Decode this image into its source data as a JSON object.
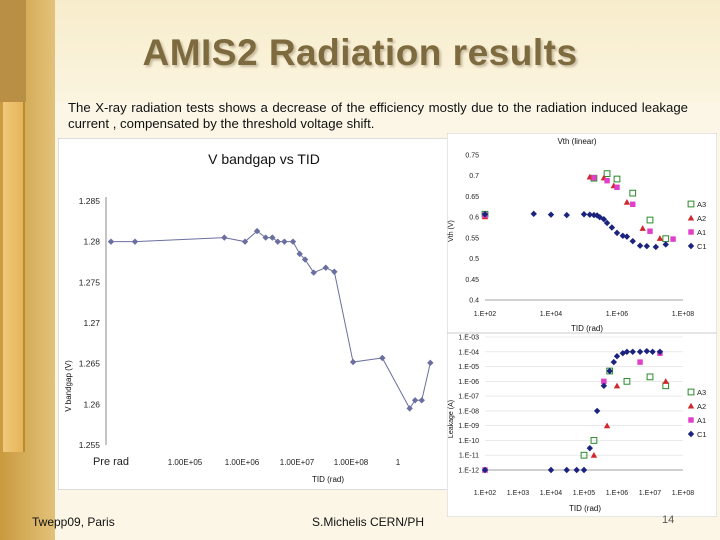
{
  "slide": {
    "title": "AMIS2 Radiation results",
    "caption": "The X-ray radiation tests shows a decrease of the efficiency mostly due to the radiation induced leakage current , compensated by the threshold voltage shift.",
    "footer_left": "Twepp09, Paris",
    "footer_center": "S.Michelis CERN/PH",
    "page_number": "14",
    "colors": {
      "background": "#fbf6e6",
      "title": "#7d6a3e",
      "accent_strip": "#d4a74e"
    }
  },
  "chart_data": [
    {
      "type": "line",
      "title": "V bandgap vs TID",
      "xlabel": "TID (rad)",
      "ylabel": "V bandgap (V)",
      "x_tick_labels": [
        "Pre rad",
        "1.00E+05",
        "1.00E+06",
        "1.00E+07",
        "1.00E+08",
        "1"
      ],
      "y_tick_labels": [
        "1.285",
        "1.28",
        "1.275",
        "1.27",
        "1.265",
        "1.26",
        "1.255"
      ],
      "ylim": [
        1.255,
        1.285
      ],
      "series": [
        {
          "x": [
            "Pre rad",
            10000,
            200000,
            400000,
            600000,
            800000,
            1000000,
            1200000,
            1500000,
            2000000,
            2500000,
            3000000,
            4000000,
            6000000,
            8000000,
            15000000,
            40000000,
            100000000,
            120000000,
            150000000,
            200000000
          ],
          "values": [
            1.28,
            1.28,
            1.2805,
            1.28,
            1.2813,
            1.2805,
            1.2805,
            1.28,
            1.28,
            1.28,
            1.2785,
            1.2778,
            1.2762,
            1.2768,
            1.2763,
            1.2652,
            1.2657,
            1.2595,
            1.2605,
            1.2605,
            1.2651
          ]
        }
      ],
      "grid": false,
      "legend": "none"
    },
    {
      "type": "scatter",
      "title": "Vth (linear)",
      "xlabel": "TID (rad)",
      "ylabel": "Vth (V)",
      "x_tick_labels": [
        "1.E+02",
        "1.E+04",
        "1.E+06",
        "1.E+08"
      ],
      "y_tick_labels": [
        "0.75",
        "0.7",
        "0.65",
        "0.6",
        "0.55",
        "0.5",
        "0.45",
        "0.4"
      ],
      "ylim": [
        0.4,
        0.75
      ],
      "xlim": [
        100,
        100000000
      ],
      "legend_position": "right",
      "series": [
        {
          "name": "A3",
          "marker": "open-square",
          "color": "#2a8a2a",
          "x": [
            100,
            200000,
            500000,
            1000000,
            3000000,
            10000000,
            30000000
          ],
          "values": [
            0.607,
            0.694,
            0.705,
            0.692,
            0.658,
            0.593,
            0.548
          ]
        },
        {
          "name": "A2",
          "marker": "triangle",
          "color": "#d0282d",
          "x": [
            100,
            150000,
            400000,
            800000,
            2000000,
            6000000,
            20000000
          ],
          "values": [
            0.601,
            0.697,
            0.695,
            0.676,
            0.636,
            0.573,
            0.549
          ]
        },
        {
          "name": "A1",
          "marker": "square",
          "color": "#e040c8",
          "x": [
            100,
            200000,
            500000,
            1000000,
            3000000,
            10000000,
            50000000
          ],
          "values": [
            0.605,
            0.695,
            0.688,
            0.672,
            0.631,
            0.566,
            0.547
          ]
        },
        {
          "name": "C1",
          "marker": "diamond",
          "color": "#1a237e",
          "x": [
            100,
            3000,
            10000,
            30000,
            100000,
            150000,
            200000,
            250000,
            300000,
            400000,
            500000,
            700000,
            1000000,
            1500000,
            2000000,
            3000000,
            5000000,
            8000000,
            15000000,
            30000000
          ],
          "values": [
            0.607,
            0.608,
            0.606,
            0.605,
            0.607,
            0.606,
            0.605,
            0.604,
            0.6,
            0.595,
            0.586,
            0.575,
            0.562,
            0.555,
            0.553,
            0.542,
            0.531,
            0.53,
            0.528,
            0.534
          ]
        }
      ]
    },
    {
      "type": "scatter",
      "title": "",
      "xlabel": "TID (rad)",
      "ylabel": "Leakage (A)",
      "x_tick_labels": [
        "1.E+02",
        "1.E+03",
        "1.E+04",
        "1.E+05",
        "1.E+06",
        "1.E+07",
        "1.E+08"
      ],
      "y_tick_labels": [
        "1.E-03",
        "1.E-04",
        "1.E-05",
        "1.E-06",
        "1.E-07",
        "1.E-08",
        "1.E-09",
        "1.E-10",
        "1.E-11",
        "1.E-12"
      ],
      "ylim": [
        1e-12,
        0.001
      ],
      "xlim": [
        100,
        100000000
      ],
      "legend_position": "right",
      "series": [
        {
          "name": "A3",
          "marker": "open-square",
          "color": "#2a8a2a",
          "x": [
            100000,
            200000,
            600000,
            2000000,
            10000000,
            30000000
          ],
          "values": [
            1e-11,
            1e-10,
            5e-06,
            1e-06,
            2e-06,
            5e-07
          ]
        },
        {
          "name": "A2",
          "marker": "triangle",
          "color": "#d0282d",
          "x": [
            100,
            200000,
            500000,
            1000000,
            30000000
          ],
          "values": [
            1e-12,
            1e-11,
            1e-09,
            5e-07,
            1e-06
          ]
        },
        {
          "name": "A1",
          "marker": "square",
          "color": "#e040c8",
          "x": [
            100,
            400000,
            5000000,
            20000000
          ],
          "values": [
            1e-12,
            1e-06,
            2e-05,
            8e-05
          ]
        },
        {
          "name": "C1",
          "marker": "diamond",
          "color": "#1a237e",
          "x": [
            100,
            10000,
            30000,
            60000,
            100000,
            150000,
            250000,
            400000,
            600000,
            800000,
            1000000,
            1500000,
            2000000,
            3000000,
            5000000,
            8000000,
            12000000,
            20000000
          ],
          "values": [
            1e-12,
            1e-12,
            1e-12,
            1e-12,
            1e-12,
            3e-11,
            1e-08,
            5e-07,
            5e-06,
            2e-05,
            5e-05,
            8e-05,
            0.0001,
            0.0001,
            0.0001,
            0.00011,
            0.0001,
            0.0001
          ]
        }
      ]
    }
  ]
}
